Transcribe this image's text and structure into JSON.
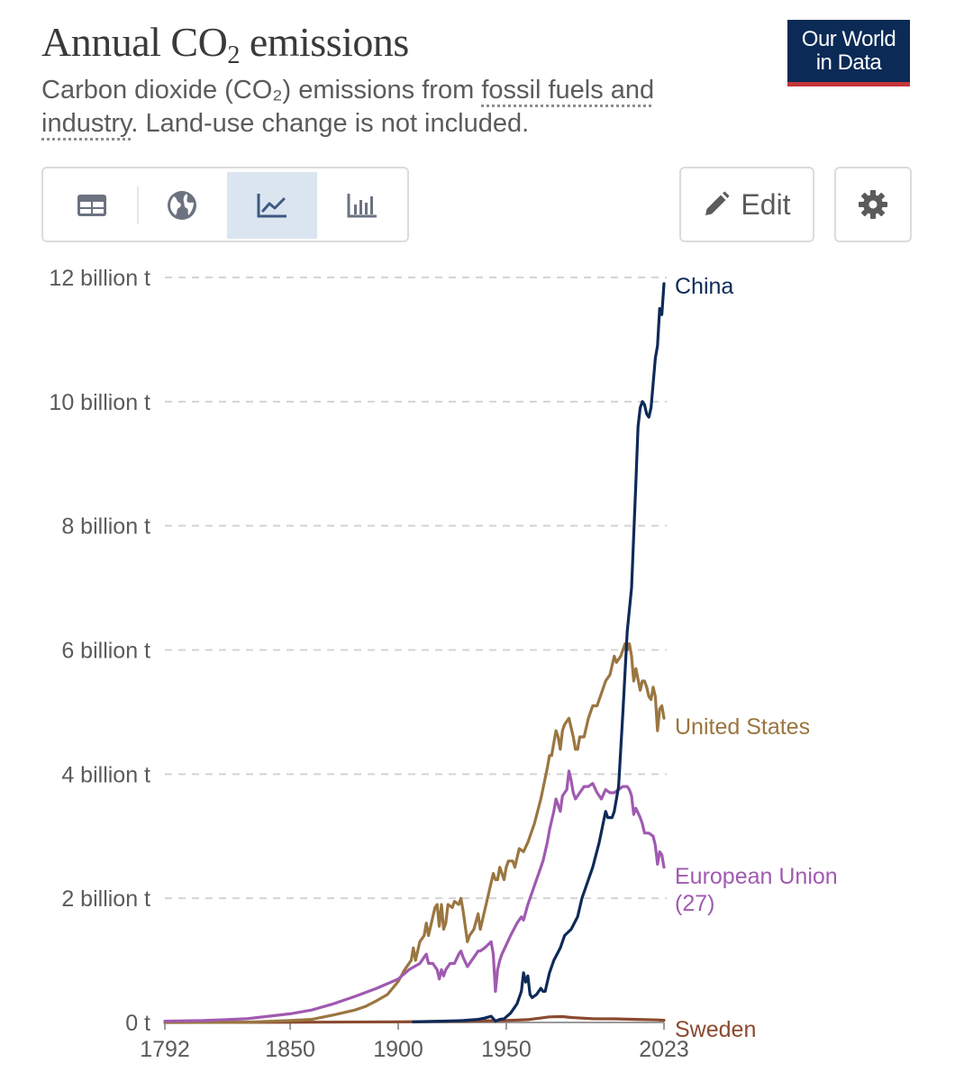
{
  "header": {
    "title_main": "Annual CO",
    "title_sub": "2",
    "title_end": " emissions",
    "subtitle_pre": "Carbon dioxide (CO₂) emissions from ",
    "subtitle_link": "fossil fuels and industry",
    "subtitle_post": ". Land-use change is not included.",
    "logo_line1": "Our World",
    "logo_line2": "in Data"
  },
  "toolbar": {
    "tabs": [
      "table",
      "map",
      "line-chart",
      "bar-chart"
    ],
    "active_tab": "line-chart",
    "edit_label": "Edit"
  },
  "colors": {
    "china": "#0e2a58",
    "us": "#9a7640",
    "eu": "#a05ab0",
    "sweden": "#8b4a2f",
    "logo_bg": "#0b2a56",
    "logo_bar": "#c4353a",
    "active_tab_bg": "#dbe5f0"
  },
  "chart_data": {
    "type": "line",
    "title": "Annual CO₂ emissions",
    "xlabel": "",
    "ylabel": "",
    "xlim": [
      1792,
      2023
    ],
    "ylim": [
      0,
      12000000000
    ],
    "x_ticks": [
      "1792",
      "1850",
      "1900",
      "1950",
      "2023"
    ],
    "y_ticks": [
      "0 t",
      "2 billion t",
      "4 billion t",
      "6 billion t",
      "8 billion t",
      "10 billion t",
      "12 billion t"
    ],
    "grid": "horizontal dashed",
    "series": [
      {
        "name": "China",
        "label": "China",
        "key": "china",
        "points": [
          [
            1907,
            0.01
          ],
          [
            1920,
            0.02
          ],
          [
            1930,
            0.03
          ],
          [
            1937,
            0.05
          ],
          [
            1940,
            0.07
          ],
          [
            1943,
            0.1
          ],
          [
            1945,
            0.02
          ],
          [
            1947,
            0.05
          ],
          [
            1949,
            0.06
          ],
          [
            1952,
            0.15
          ],
          [
            1955,
            0.3
          ],
          [
            1957,
            0.5
          ],
          [
            1958,
            0.8
          ],
          [
            1959,
            0.65
          ],
          [
            1960,
            0.75
          ],
          [
            1961,
            0.45
          ],
          [
            1962,
            0.4
          ],
          [
            1964,
            0.45
          ],
          [
            1966,
            0.55
          ],
          [
            1967,
            0.5
          ],
          [
            1968,
            0.5
          ],
          [
            1970,
            0.8
          ],
          [
            1972,
            1.0
          ],
          [
            1975,
            1.2
          ],
          [
            1977,
            1.4
          ],
          [
            1980,
            1.5
          ],
          [
            1983,
            1.7
          ],
          [
            1985,
            2.0
          ],
          [
            1988,
            2.3
          ],
          [
            1990,
            2.5
          ],
          [
            1993,
            2.9
          ],
          [
            1996,
            3.4
          ],
          [
            1997,
            3.3
          ],
          [
            1999,
            3.3
          ],
          [
            2000,
            3.4
          ],
          [
            2002,
            3.8
          ],
          [
            2004,
            5.0
          ],
          [
            2006,
            6.3
          ],
          [
            2008,
            7.0
          ],
          [
            2010,
            8.7
          ],
          [
            2011,
            9.6
          ],
          [
            2012,
            9.9
          ],
          [
            2013,
            10.0
          ],
          [
            2014,
            9.95
          ],
          [
            2015,
            9.8
          ],
          [
            2016,
            9.75
          ],
          [
            2017,
            9.9
          ],
          [
            2018,
            10.3
          ],
          [
            2019,
            10.7
          ],
          [
            2020,
            10.9
          ],
          [
            2021,
            11.5
          ],
          [
            2022,
            11.4
          ],
          [
            2023,
            11.9
          ]
        ],
        "end_value": 11.9
      },
      {
        "name": "United States",
        "label": "United States",
        "key": "us",
        "points": [
          [
            1792,
            0.0
          ],
          [
            1830,
            0.005
          ],
          [
            1850,
            0.03
          ],
          [
            1860,
            0.05
          ],
          [
            1870,
            0.12
          ],
          [
            1880,
            0.2
          ],
          [
            1885,
            0.26
          ],
          [
            1890,
            0.35
          ],
          [
            1895,
            0.45
          ],
          [
            1900,
            0.66
          ],
          [
            1903,
            0.85
          ],
          [
            1906,
            1.0
          ],
          [
            1907,
            1.2
          ],
          [
            1908,
            1.0
          ],
          [
            1910,
            1.3
          ],
          [
            1912,
            1.4
          ],
          [
            1913,
            1.6
          ],
          [
            1914,
            1.4
          ],
          [
            1916,
            1.7
          ],
          [
            1917,
            1.85
          ],
          [
            1918,
            1.9
          ],
          [
            1919,
            1.55
          ],
          [
            1920,
            1.9
          ],
          [
            1921,
            1.5
          ],
          [
            1922,
            1.6
          ],
          [
            1923,
            1.9
          ],
          [
            1925,
            1.85
          ],
          [
            1926,
            1.95
          ],
          [
            1928,
            1.9
          ],
          [
            1929,
            2.0
          ],
          [
            1930,
            1.8
          ],
          [
            1931,
            1.55
          ],
          [
            1932,
            1.3
          ],
          [
            1933,
            1.4
          ],
          [
            1935,
            1.5
          ],
          [
            1937,
            1.75
          ],
          [
            1938,
            1.5
          ],
          [
            1940,
            1.8
          ],
          [
            1942,
            2.1
          ],
          [
            1944,
            2.4
          ],
          [
            1945,
            2.3
          ],
          [
            1946,
            2.3
          ],
          [
            1947,
            2.5
          ],
          [
            1949,
            2.3
          ],
          [
            1950,
            2.5
          ],
          [
            1951,
            2.6
          ],
          [
            1953,
            2.6
          ],
          [
            1954,
            2.5
          ],
          [
            1956,
            2.8
          ],
          [
            1958,
            2.75
          ],
          [
            1960,
            2.9
          ],
          [
            1963,
            3.2
          ],
          [
            1966,
            3.6
          ],
          [
            1969,
            4.1
          ],
          [
            1970,
            4.3
          ],
          [
            1971,
            4.3
          ],
          [
            1972,
            4.5
          ],
          [
            1973,
            4.7
          ],
          [
            1974,
            4.6
          ],
          [
            1975,
            4.4
          ],
          [
            1976,
            4.7
          ],
          [
            1977,
            4.8
          ],
          [
            1978,
            4.85
          ],
          [
            1979,
            4.9
          ],
          [
            1980,
            4.75
          ],
          [
            1981,
            4.6
          ],
          [
            1982,
            4.4
          ],
          [
            1983,
            4.4
          ],
          [
            1984,
            4.6
          ],
          [
            1986,
            4.6
          ],
          [
            1988,
            4.9
          ],
          [
            1990,
            5.1
          ],
          [
            1992,
            5.1
          ],
          [
            1994,
            5.3
          ],
          [
            1996,
            5.5
          ],
          [
            1998,
            5.6
          ],
          [
            2000,
            5.9
          ],
          [
            2001,
            5.8
          ],
          [
            2003,
            5.9
          ],
          [
            2005,
            6.1
          ],
          [
            2006,
            6.0
          ],
          [
            2007,
            6.1
          ],
          [
            2008,
            5.9
          ],
          [
            2009,
            5.5
          ],
          [
            2010,
            5.7
          ],
          [
            2012,
            5.35
          ],
          [
            2013,
            5.5
          ],
          [
            2014,
            5.5
          ],
          [
            2015,
            5.4
          ],
          [
            2016,
            5.25
          ],
          [
            2017,
            5.2
          ],
          [
            2018,
            5.4
          ],
          [
            2019,
            5.25
          ],
          [
            2020,
            4.7
          ],
          [
            2021,
            5.05
          ],
          [
            2022,
            5.1
          ],
          [
            2023,
            4.9
          ]
        ],
        "end_value": 4.9
      },
      {
        "name": "European Union (27)",
        "label": "European Union",
        "label2": "(27)",
        "key": "eu",
        "points": [
          [
            1792,
            0.02
          ],
          [
            1810,
            0.03
          ],
          [
            1830,
            0.06
          ],
          [
            1850,
            0.14
          ],
          [
            1860,
            0.2
          ],
          [
            1870,
            0.3
          ],
          [
            1880,
            0.42
          ],
          [
            1890,
            0.55
          ],
          [
            1900,
            0.7
          ],
          [
            1905,
            0.85
          ],
          [
            1910,
            0.95
          ],
          [
            1912,
            1.05
          ],
          [
            1913,
            1.1
          ],
          [
            1914,
            0.95
          ],
          [
            1916,
            0.95
          ],
          [
            1918,
            0.85
          ],
          [
            1919,
            0.7
          ],
          [
            1920,
            0.85
          ],
          [
            1921,
            0.75
          ],
          [
            1922,
            0.85
          ],
          [
            1924,
            0.95
          ],
          [
            1926,
            0.95
          ],
          [
            1928,
            1.1
          ],
          [
            1929,
            1.15
          ],
          [
            1930,
            1.05
          ],
          [
            1932,
            0.9
          ],
          [
            1934,
            1.0
          ],
          [
            1936,
            1.1
          ],
          [
            1937,
            1.15
          ],
          [
            1938,
            1.15
          ],
          [
            1940,
            1.2
          ],
          [
            1943,
            1.3
          ],
          [
            1944,
            1.1
          ],
          [
            1945,
            0.5
          ],
          [
            1946,
            0.85
          ],
          [
            1947,
            1.0
          ],
          [
            1948,
            1.1
          ],
          [
            1950,
            1.25
          ],
          [
            1952,
            1.4
          ],
          [
            1955,
            1.6
          ],
          [
            1957,
            1.7
          ],
          [
            1958,
            1.65
          ],
          [
            1960,
            1.9
          ],
          [
            1963,
            2.2
          ],
          [
            1965,
            2.4
          ],
          [
            1967,
            2.6
          ],
          [
            1969,
            2.9
          ],
          [
            1970,
            3.1
          ],
          [
            1972,
            3.4
          ],
          [
            1973,
            3.6
          ],
          [
            1974,
            3.5
          ],
          [
            1975,
            3.4
          ],
          [
            1976,
            3.65
          ],
          [
            1978,
            3.75
          ],
          [
            1979,
            4.05
          ],
          [
            1980,
            3.9
          ],
          [
            1981,
            3.7
          ],
          [
            1982,
            3.6
          ],
          [
            1984,
            3.7
          ],
          [
            1986,
            3.8
          ],
          [
            1988,
            3.8
          ],
          [
            1990,
            3.85
          ],
          [
            1992,
            3.7
          ],
          [
            1994,
            3.6
          ],
          [
            1996,
            3.75
          ],
          [
            1998,
            3.7
          ],
          [
            2000,
            3.7
          ],
          [
            2002,
            3.75
          ],
          [
            2004,
            3.8
          ],
          [
            2006,
            3.8
          ],
          [
            2007,
            3.75
          ],
          [
            2008,
            3.65
          ],
          [
            2009,
            3.35
          ],
          [
            2010,
            3.45
          ],
          [
            2012,
            3.3
          ],
          [
            2013,
            3.2
          ],
          [
            2014,
            3.05
          ],
          [
            2016,
            3.05
          ],
          [
            2018,
            3.0
          ],
          [
            2019,
            2.85
          ],
          [
            2020,
            2.55
          ],
          [
            2021,
            2.75
          ],
          [
            2022,
            2.7
          ],
          [
            2023,
            2.5
          ]
        ],
        "end_value": 2.5
      },
      {
        "name": "Sweden",
        "label": "Sweden",
        "key": "sweden",
        "points": [
          [
            1792,
            0.0
          ],
          [
            1850,
            0.003
          ],
          [
            1900,
            0.01
          ],
          [
            1930,
            0.02
          ],
          [
            1950,
            0.03
          ],
          [
            1960,
            0.045
          ],
          [
            1970,
            0.09
          ],
          [
            1976,
            0.095
          ],
          [
            1980,
            0.08
          ],
          [
            1990,
            0.06
          ],
          [
            2000,
            0.058
          ],
          [
            2010,
            0.05
          ],
          [
            2020,
            0.04
          ],
          [
            2023,
            0.035
          ]
        ],
        "end_value": 0.035
      }
    ],
    "units_note": "point values are in billion t"
  }
}
